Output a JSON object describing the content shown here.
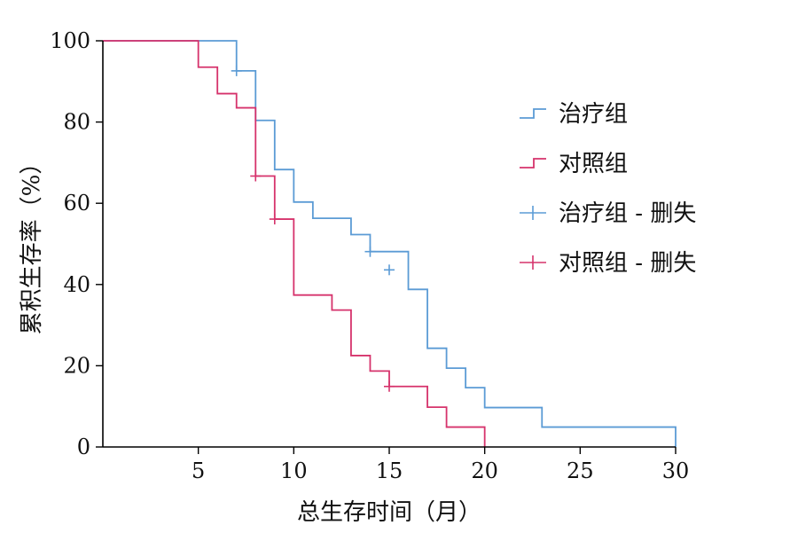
{
  "colors": {
    "treatment": "#5B9BD5",
    "control": "#D6336C",
    "axis": "#000000"
  },
  "chart_data": {
    "type": "line",
    "xlabel": "总生存时间（月）",
    "ylabel": "累积生存率（%）",
    "xlim": [
      0,
      30
    ],
    "ylim": [
      0,
      100
    ],
    "xticks": [
      5,
      10,
      15,
      20,
      25,
      30
    ],
    "yticks": [
      0,
      20,
      40,
      60,
      80,
      100
    ],
    "grid": false,
    "legend_position": "right",
    "legend": [
      "治疗组",
      "对照组",
      "治疗组 - 删失",
      "对照组 - 删失"
    ],
    "series": [
      {
        "name": "治疗组",
        "color": "#5B9BD5",
        "step_x": [
          0,
          7,
          8,
          9,
          10,
          11,
          13,
          14,
          16,
          17,
          18,
          19,
          20,
          23,
          30
        ],
        "step_y": [
          100,
          92.6,
          80.4,
          68.3,
          60.3,
          56.3,
          52.3,
          48.1,
          38.8,
          24.3,
          19.4,
          14.6,
          9.7,
          4.9,
          0
        ],
        "censored_x": [
          7,
          14,
          15
        ],
        "censored_y": [
          92.6,
          48.1,
          43.6
        ]
      },
      {
        "name": "对照组",
        "color": "#D6336C",
        "step_x": [
          0,
          5,
          6,
          7,
          8,
          9,
          10,
          12,
          13,
          14,
          15,
          17,
          18,
          20
        ],
        "step_y": [
          100,
          93.5,
          87.0,
          83.5,
          66.7,
          56.1,
          37.4,
          33.7,
          22.5,
          18.7,
          14.9,
          9.8,
          4.9,
          0
        ],
        "censored_x": [
          8,
          9,
          15
        ],
        "censored_y": [
          66.7,
          56.1,
          14.9
        ]
      }
    ]
  }
}
